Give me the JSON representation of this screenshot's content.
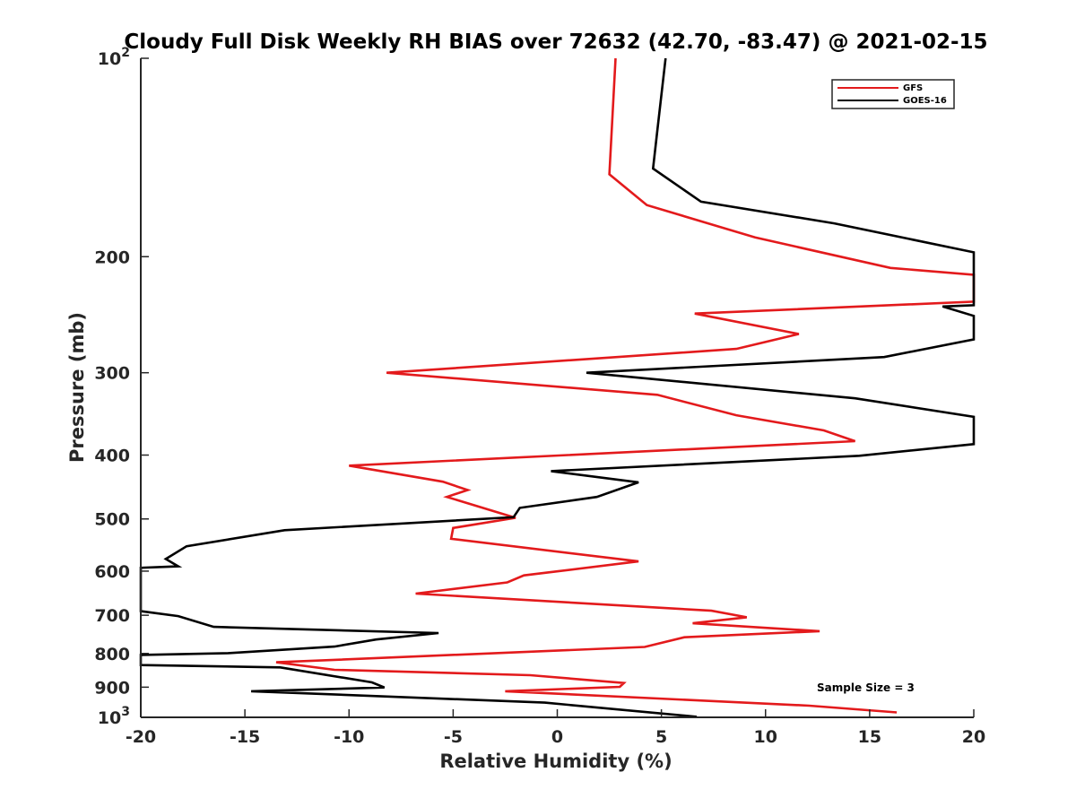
{
  "chart_data": {
    "type": "line",
    "title": "Cloudy Full Disk Weekly RH BIAS over 72632 (42.70, -83.47) @ 2021-02-15",
    "xlabel": "Relative Humidity (%)",
    "ylabel": "Pressure (mb)",
    "xlim": [
      -20,
      20
    ],
    "ylim": [
      100,
      1000
    ],
    "yscale": "log",
    "y_reversed": true,
    "x_ticks": [
      "-20",
      "-15",
      "-10",
      "-5",
      "0",
      "5",
      "10",
      "15",
      "20"
    ],
    "y_ticks": [
      {
        "value": 100,
        "base": "10",
        "exp": "2"
      },
      {
        "value": 200,
        "label": "200"
      },
      {
        "value": 300,
        "label": "300"
      },
      {
        "value": 400,
        "label": "400"
      },
      {
        "value": 500,
        "label": "500"
      },
      {
        "value": 600,
        "label": "600"
      },
      {
        "value": 700,
        "label": "700"
      },
      {
        "value": 800,
        "label": "800"
      },
      {
        "value": 900,
        "label": "900"
      },
      {
        "value": 1000,
        "base": "10",
        "exp": "3"
      }
    ],
    "legend_position": "top-right",
    "annotation": "Sample Size = 3",
    "series": [
      {
        "name": "GFS",
        "color": "#e31a1c",
        "points": [
          [
            2.8,
            100
          ],
          [
            2.5,
            150
          ],
          [
            4.3,
            167
          ],
          [
            9.5,
            187
          ],
          [
            16,
            208
          ],
          [
            20,
            213
          ],
          [
            20,
            234
          ],
          [
            6.6,
            244
          ],
          [
            11.6,
            262
          ],
          [
            8.6,
            276
          ],
          [
            -8.2,
            300
          ],
          [
            4.8,
            324
          ],
          [
            8.6,
            348
          ],
          [
            12.8,
            367
          ],
          [
            14.3,
            381
          ],
          [
            -10,
            415
          ],
          [
            -5.5,
            439
          ],
          [
            -4.3,
            452
          ],
          [
            -5.3,
            463
          ],
          [
            -2,
            498
          ],
          [
            -5,
            516
          ],
          [
            -5.1,
            536
          ],
          [
            3.9,
            580
          ],
          [
            -1.6,
            609
          ],
          [
            -2.4,
            624
          ],
          [
            -6.8,
            649
          ],
          [
            7.4,
            689
          ],
          [
            9.1,
            705
          ],
          [
            6.5,
            720
          ],
          [
            12.6,
            740
          ],
          [
            6.1,
            756
          ],
          [
            4.2,
            782
          ],
          [
            -13.5,
            825
          ],
          [
            -10.7,
            847
          ],
          [
            -1.3,
            863
          ],
          [
            3.2,
            887
          ],
          [
            3,
            899
          ],
          [
            -2.5,
            913
          ],
          [
            12.1,
            960
          ],
          [
            16.3,
            983
          ]
        ]
      },
      {
        "name": "GOES-16",
        "color": "#000000",
        "points": [
          [
            5.2,
            100
          ],
          [
            4.8,
            129
          ],
          [
            4.6,
            147
          ],
          [
            6.9,
            165
          ],
          [
            13.3,
            178
          ],
          [
            20,
            197
          ],
          [
            20,
            237
          ],
          [
            18.5,
            238
          ],
          [
            20,
            246
          ],
          [
            20,
            267
          ],
          [
            15.7,
            284
          ],
          [
            1.4,
            300
          ],
          [
            14.3,
            328
          ],
          [
            20,
            350
          ],
          [
            20,
            385
          ],
          [
            14.5,
            401
          ],
          [
            -0.3,
            423
          ],
          [
            3.9,
            440
          ],
          [
            1.9,
            463
          ],
          [
            -1.8,
            481
          ],
          [
            -2.1,
            497
          ],
          [
            -13.1,
            520
          ],
          [
            -17.8,
            550
          ],
          [
            -18.8,
            575
          ],
          [
            -18.2,
            590
          ],
          [
            -20,
            593
          ],
          [
            -20,
            690
          ],
          [
            -18.2,
            702
          ],
          [
            -16.5,
            729
          ],
          [
            -5.7,
            745
          ],
          [
            -8.7,
            762
          ],
          [
            -10.7,
            781
          ],
          [
            -15.8,
            799
          ],
          [
            -20,
            804
          ],
          [
            -20,
            833
          ],
          [
            -13.3,
            840
          ],
          [
            -8.9,
            885
          ],
          [
            -8.3,
            901
          ],
          [
            -14.7,
            913
          ],
          [
            -0.6,
            950
          ],
          [
            6.7,
            998
          ]
        ]
      }
    ]
  }
}
